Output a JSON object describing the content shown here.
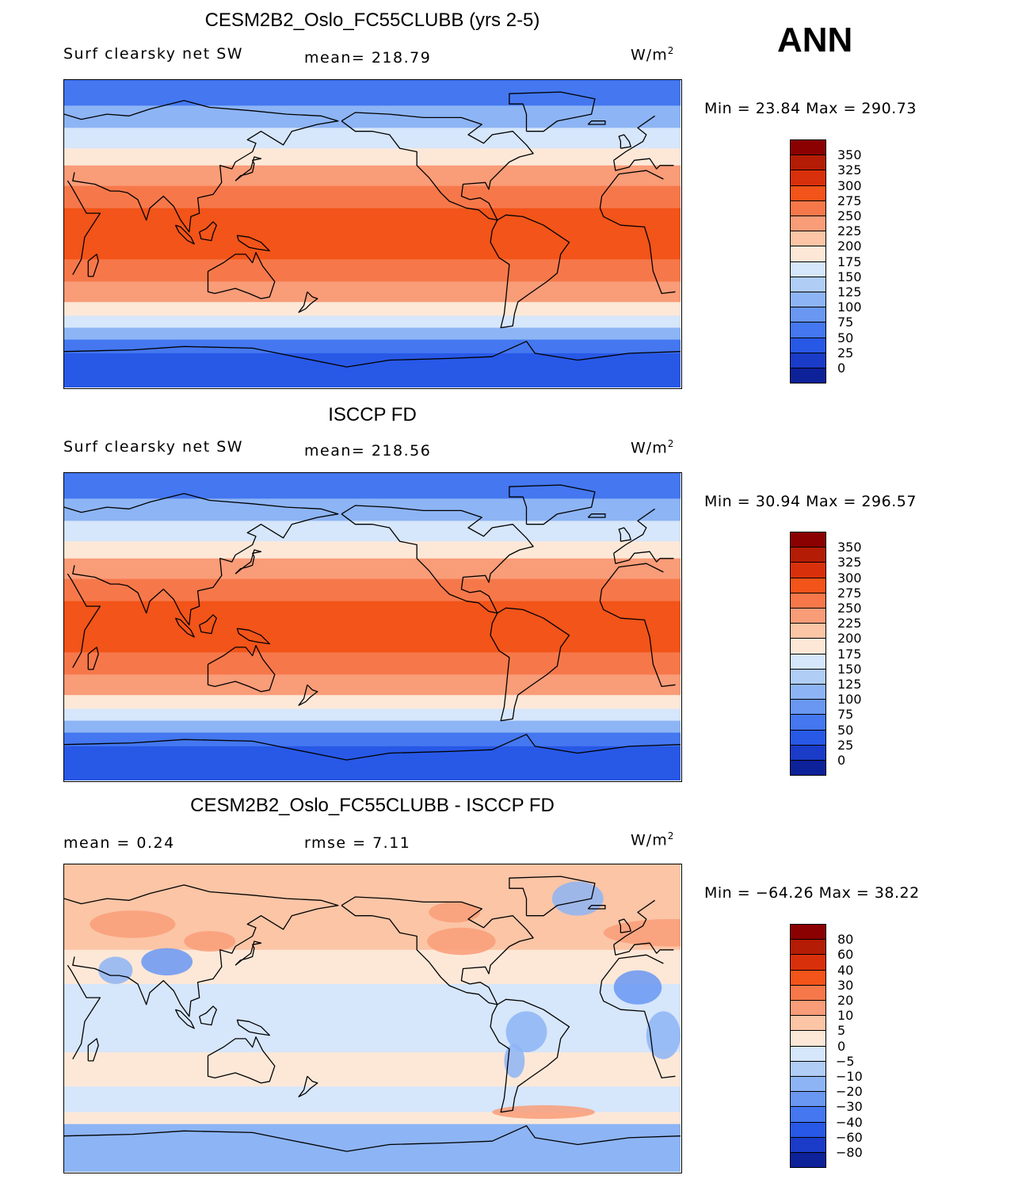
{
  "season": "ANN",
  "chart_data": [
    {
      "type": "heatmap",
      "title": "CESM2B2_Oslo_FC55CLUBB (yrs 2-5)",
      "variable_label": "Surf clearsky net SW",
      "stat_text": "mean= 218.79",
      "units": "W/m",
      "units_exp": "2",
      "minmax_text": "Min =   23.84  Max  =  290.73",
      "min": 23.84,
      "max": 290.73,
      "mean": 218.79,
      "colorbar_levels": [
        "350",
        "325",
        "300",
        "275",
        "250",
        "225",
        "200",
        "175",
        "150",
        "125",
        "100",
        "75",
        "50",
        "25",
        "0"
      ],
      "colorbar_colors": [
        "#8b0000",
        "#b51c05",
        "#d9300c",
        "#f25419",
        "#f6784a",
        "#f99c78",
        "#fbc5a6",
        "#fde8d8",
        "#d6e6fb",
        "#b0cdf6",
        "#8db4f4",
        "#6997f2",
        "#4477f0",
        "#2858e6",
        "#1a3cc8",
        "#0d2199"
      ],
      "bands": [
        {
          "lat_top": 90,
          "lat_bot": 75,
          "value": 60
        },
        {
          "lat_top": 75,
          "lat_bot": 62,
          "value": 110
        },
        {
          "lat_top": 62,
          "lat_bot": 50,
          "value": 150
        },
        {
          "lat_top": 50,
          "lat_bot": 40,
          "value": 190
        },
        {
          "lat_top": 40,
          "lat_bot": 28,
          "value": 235
        },
        {
          "lat_top": 28,
          "lat_bot": 15,
          "value": 265
        },
        {
          "lat_top": 15,
          "lat_bot": -15,
          "value": 290
        },
        {
          "lat_top": -15,
          "lat_bot": -28,
          "value": 265
        },
        {
          "lat_top": -28,
          "lat_bot": -40,
          "value": 230
        },
        {
          "lat_top": -40,
          "lat_bot": -48,
          "value": 185
        },
        {
          "lat_top": -48,
          "lat_bot": -55,
          "value": 150
        },
        {
          "lat_top": -55,
          "lat_bot": -62,
          "value": 100
        },
        {
          "lat_top": -62,
          "lat_bot": -70,
          "value": 60
        },
        {
          "lat_top": -70,
          "lat_bot": -90,
          "value": 30
        }
      ]
    },
    {
      "type": "heatmap",
      "title": "ISCCP FD",
      "variable_label": "Surf clearsky net SW",
      "stat_text": "mean= 218.56",
      "units": "W/m",
      "units_exp": "2",
      "minmax_text": "Min =   30.94  Max  =  296.57",
      "min": 30.94,
      "max": 296.57,
      "mean": 218.56,
      "colorbar_levels": [
        "350",
        "325",
        "300",
        "275",
        "250",
        "225",
        "200",
        "175",
        "150",
        "125",
        "100",
        "75",
        "50",
        "25",
        "0"
      ],
      "colorbar_colors": [
        "#8b0000",
        "#b51c05",
        "#d9300c",
        "#f25419",
        "#f6784a",
        "#f99c78",
        "#fbc5a6",
        "#fde8d8",
        "#d6e6fb",
        "#b0cdf6",
        "#8db4f4",
        "#6997f2",
        "#4477f0",
        "#2858e6",
        "#1a3cc8",
        "#0d2199"
      ],
      "bands": [
        {
          "lat_top": 90,
          "lat_bot": 75,
          "value": 60
        },
        {
          "lat_top": 75,
          "lat_bot": 62,
          "value": 115
        },
        {
          "lat_top": 62,
          "lat_bot": 50,
          "value": 160
        },
        {
          "lat_top": 50,
          "lat_bot": 40,
          "value": 195
        },
        {
          "lat_top": 40,
          "lat_bot": 28,
          "value": 240
        },
        {
          "lat_top": 28,
          "lat_bot": 15,
          "value": 265
        },
        {
          "lat_top": 15,
          "lat_bot": -15,
          "value": 290
        },
        {
          "lat_top": -15,
          "lat_bot": -28,
          "value": 265
        },
        {
          "lat_top": -28,
          "lat_bot": -40,
          "value": 235
        },
        {
          "lat_top": -40,
          "lat_bot": -48,
          "value": 190
        },
        {
          "lat_top": -48,
          "lat_bot": -55,
          "value": 155
        },
        {
          "lat_top": -55,
          "lat_bot": -62,
          "value": 105
        },
        {
          "lat_top": -62,
          "lat_bot": -70,
          "value": 60
        },
        {
          "lat_top": -70,
          "lat_bot": -90,
          "value": 35
        }
      ]
    },
    {
      "type": "heatmap",
      "title": "CESM2B2_Oslo_FC55CLUBB - ISCCP FD",
      "stat_text_left": "mean =    0.24",
      "stat_text_right": "rmse =    7.11",
      "units": "W/m",
      "units_exp": "2",
      "minmax_text": "Min = −64.26  Max  =   38.22",
      "min": -64.26,
      "max": 38.22,
      "mean": 0.24,
      "rmse": 7.11,
      "colorbar_levels": [
        "80",
        "60",
        "40",
        "30",
        "20",
        "10",
        "5",
        "0",
        "−5",
        "−10",
        "−20",
        "−30",
        "−40",
        "−60",
        "−80"
      ],
      "colorbar_colors": [
        "#8b0000",
        "#b51c05",
        "#d9300c",
        "#f25419",
        "#f6784a",
        "#f99c78",
        "#fbc5a6",
        "#fde8d8",
        "#d6e6fb",
        "#b0cdf6",
        "#8db4f4",
        "#6997f2",
        "#4477f0",
        "#2858e6",
        "#1a3cc8",
        "#0d2199"
      ],
      "bands": [
        {
          "lat_top": 90,
          "lat_bot": 60,
          "value": 7
        },
        {
          "lat_top": 60,
          "lat_bot": 40,
          "value": 8
        },
        {
          "lat_top": 40,
          "lat_bot": 20,
          "value": 3
        },
        {
          "lat_top": 20,
          "lat_bot": -20,
          "value": -3
        },
        {
          "lat_top": -20,
          "lat_bot": -40,
          "value": 3
        },
        {
          "lat_top": -40,
          "lat_bot": -55,
          "value": -3
        },
        {
          "lat_top": -55,
          "lat_bot": -62,
          "value": 3
        },
        {
          "lat_top": -62,
          "lat_bot": -90,
          "value": -12
        }
      ]
    }
  ]
}
